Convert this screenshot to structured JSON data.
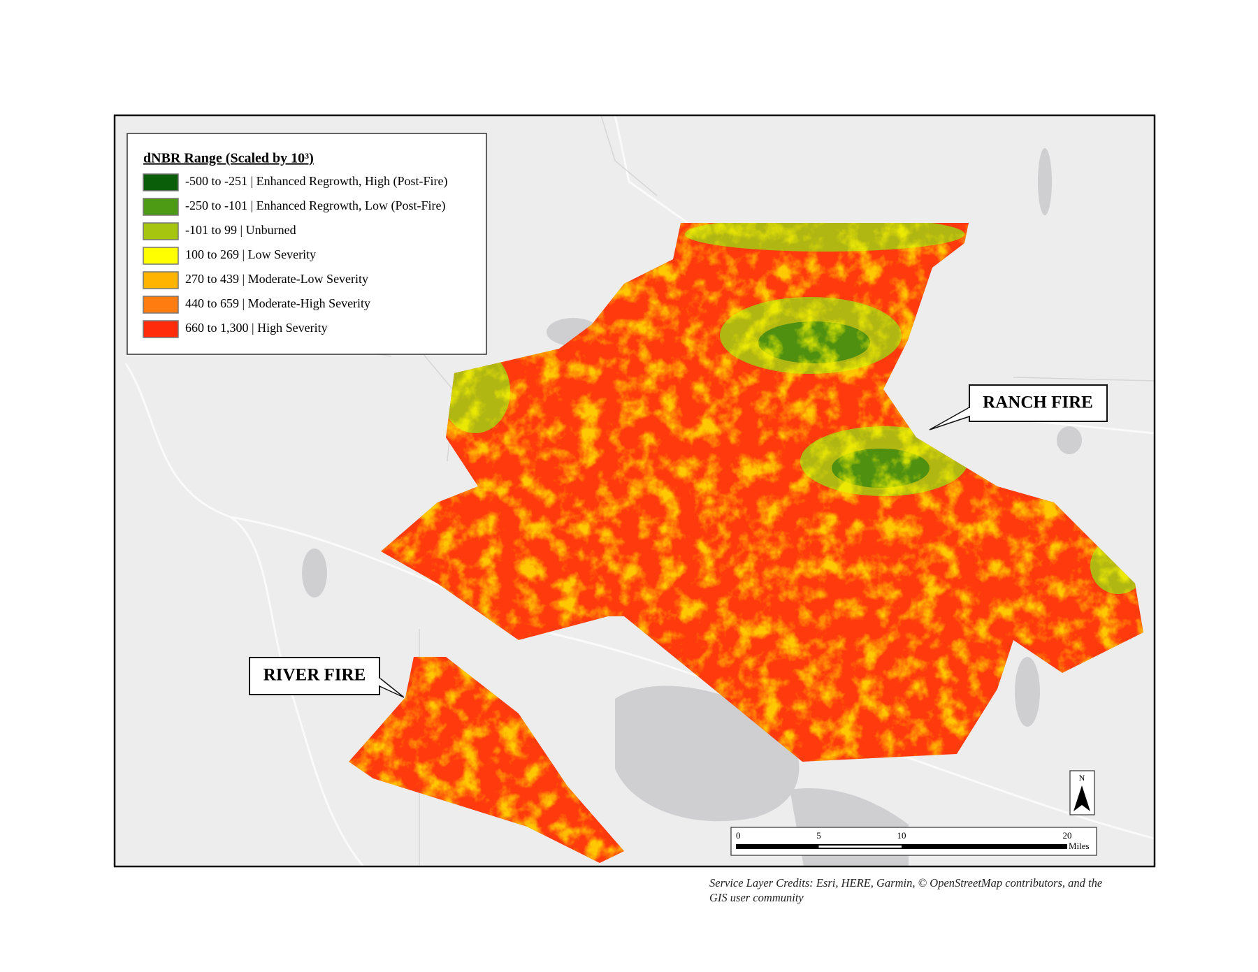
{
  "legend": {
    "title": "dNBR Range (Scaled by 10³)",
    "items": [
      {
        "label": "-500 to -251 | Enhanced Regrowth, High (Post-Fire)",
        "color": "#0a5e0a"
      },
      {
        "label": "-250 to -101 | Enhanced Regrowth, Low (Post-Fire)",
        "color": "#4d9a14"
      },
      {
        "label": "-101 to 99 | Unburned",
        "color": "#a5c50f"
      },
      {
        "label": "100 to 269 | Low Severity",
        "color": "#ffff00"
      },
      {
        "label": "270 to 439 | Moderate-Low Severity",
        "color": "#ffb400"
      },
      {
        "label": "440 to 659 | Moderate-High Severity",
        "color": "#ff7d10"
      },
      {
        "label": "660 to 1,300 | High Severity",
        "color": "#ff2b0a"
      }
    ]
  },
  "labels": {
    "ranch": "RANCH FIRE",
    "river": "RIVER FIRE"
  },
  "north_arrow": "N",
  "scale_bar": {
    "ticks": [
      0,
      5,
      10,
      20
    ],
    "unit": "Miles"
  },
  "credits": [
    "Service Layer Credits: Esri, HERE, Garmin, © OpenStreetMap contributors, and the",
    "GIS user community"
  ]
}
